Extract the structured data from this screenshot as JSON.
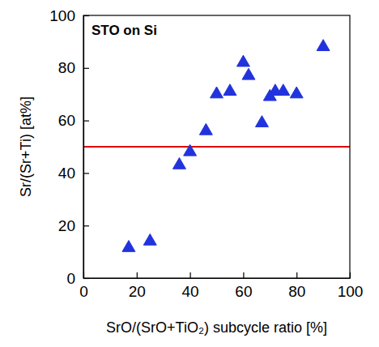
{
  "chart_data": {
    "type": "scatter",
    "title": "STO on Si",
    "x_label": "SrO/(SrO+TiO₂) subcycle ratio [%]",
    "y_label": "Sr/(Sr+Ti) [at%]",
    "x": [
      17,
      25,
      36,
      40,
      46,
      50,
      55,
      60,
      62,
      67,
      70,
      72,
      75,
      80,
      90
    ],
    "values": [
      11.5,
      14,
      43,
      48,
      56,
      70,
      71,
      82,
      77,
      59,
      69,
      71,
      71,
      70,
      88
    ],
    "color": "#2233dd",
    "marker": "triangle",
    "hlines": [
      {
        "value": 50,
        "color": "#e00000"
      }
    ],
    "xlim": [
      0,
      100
    ],
    "xticks": [
      0,
      20,
      40,
      60,
      80,
      100
    ],
    "ylim": [
      0,
      100
    ],
    "yticks": [
      0,
      20,
      40,
      60,
      80,
      100
    ],
    "grid": false
  }
}
